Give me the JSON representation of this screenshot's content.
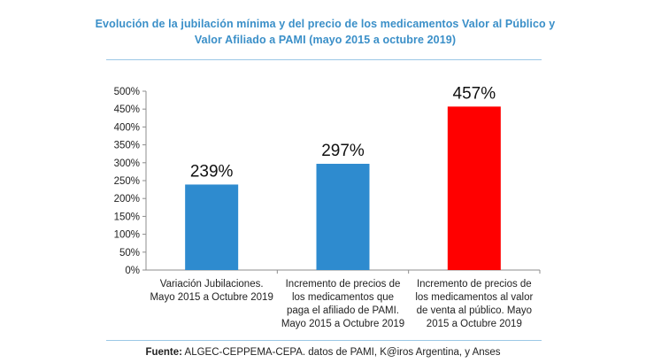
{
  "title": "Evolución de la jubilación mínima y del precio de los medicamentos Valor al Público y Valor Afiliado a PAMI (mayo 2015 a octubre 2019)",
  "source_label": "Fuente:",
  "source_text": "ALGEC-CEPPEMA-CEPA. datos de PAMI, K@iros Argentina, y Anses",
  "colors": {
    "title": "#3a8fc8",
    "bar_blue": "#2e8bcf",
    "bar_red": "#ff0000"
  },
  "chart_data": {
    "type": "bar",
    "categories": [
      [
        "Variación Jubilaciones.",
        "Mayo 2015 a Octubre 2019"
      ],
      [
        "Incremento de precios de",
        "los medicamentos que",
        "paga el afiliado de PAMI.",
        "Mayo 2015 a Octubre 2019"
      ],
      [
        "Incremento de precios de",
        "los medicamentos al valor",
        "de venta al público. Mayo",
        "2015 a Octubre 2019"
      ]
    ],
    "values": [
      239,
      297,
      457
    ],
    "data_labels": [
      "239%",
      "297%",
      "457%"
    ],
    "bar_colors": [
      "#2e8bcf",
      "#2e8bcf",
      "#ff0000"
    ],
    "ylim": [
      0,
      500
    ],
    "yticks": [
      "0%",
      "50%",
      "100%",
      "150%",
      "200%",
      "250%",
      "300%",
      "350%",
      "400%",
      "450%",
      "500%"
    ],
    "xlabel": "",
    "ylabel": "",
    "grid": false,
    "legend": "none"
  }
}
